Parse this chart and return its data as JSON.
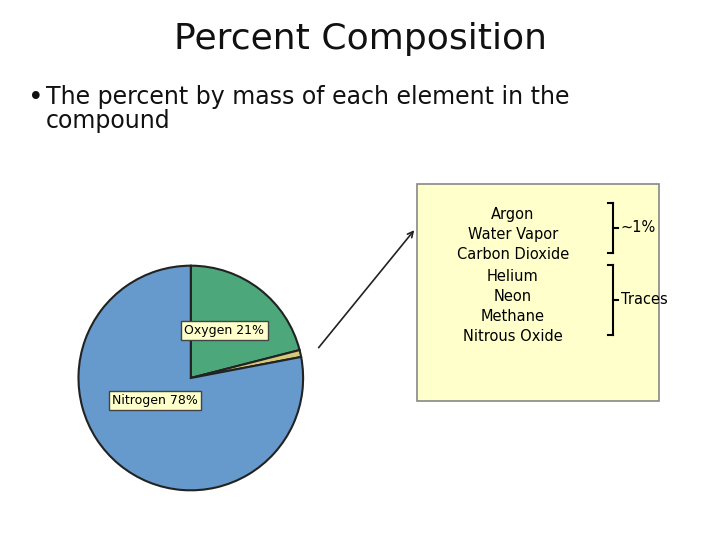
{
  "title": "Percent Composition",
  "bullet_text_line1": "The percent by mass of each element in the",
  "bullet_text_line2": "compound",
  "pie_sizes": [
    21,
    78,
    1
  ],
  "pie_colors": [
    "#4CA87A",
    "#6699CC",
    "#D4C97A"
  ],
  "pie_startangle": 90,
  "legend_box_color": "#FFFFCC",
  "legend_box_edge": "#888888",
  "background_color": "#FFFFFF",
  "title_fontsize": 26,
  "bullet_fontsize": 17,
  "annotation_group1": [
    "Argon",
    "Water Vapor",
    "Carbon Dioxide"
  ],
  "annotation_group2": [
    "Helium",
    "Neon",
    "Methane",
    "Nitrous Oxide"
  ],
  "annotation_label1": "~1%",
  "annotation_label2": "Traces",
  "oxygen_label": "Oxygen 21%",
  "nitrogen_label": "Nitrogen 78%",
  "label_box_color": "#FFFFCC",
  "label_box_edge": "#444444"
}
